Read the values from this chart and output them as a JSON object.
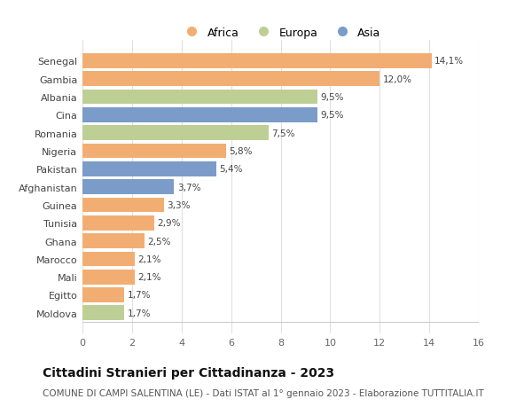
{
  "categories": [
    "Senegal",
    "Gambia",
    "Albania",
    "Cina",
    "Romania",
    "Nigeria",
    "Pakistan",
    "Afghanistan",
    "Guinea",
    "Tunisia",
    "Ghana",
    "Marocco",
    "Mali",
    "Egitto",
    "Moldova"
  ],
  "values": [
    14.1,
    12.0,
    9.5,
    9.5,
    7.5,
    5.8,
    5.4,
    3.7,
    3.3,
    2.9,
    2.5,
    2.1,
    2.1,
    1.7,
    1.7
  ],
  "labels": [
    "14,1%",
    "12,0%",
    "9,5%",
    "9,5%",
    "7,5%",
    "5,8%",
    "5,4%",
    "3,7%",
    "3,3%",
    "2,9%",
    "2,5%",
    "2,1%",
    "2,1%",
    "1,7%",
    "1,7%"
  ],
  "continents": [
    "Africa",
    "Africa",
    "Europa",
    "Asia",
    "Europa",
    "Africa",
    "Asia",
    "Asia",
    "Africa",
    "Africa",
    "Africa",
    "Africa",
    "Africa",
    "Africa",
    "Europa"
  ],
  "colors": {
    "Africa": "#F2AE72",
    "Europa": "#BECF96",
    "Asia": "#7B9CC8"
  },
  "legend_labels": [
    "Africa",
    "Europa",
    "Asia"
  ],
  "xlim": [
    0,
    16
  ],
  "xticks": [
    0,
    2,
    4,
    6,
    8,
    10,
    12,
    14,
    16
  ],
  "title": "Cittadini Stranieri per Cittadinanza - 2023",
  "subtitle": "COMUNE DI CAMPI SALENTINA (LE) - Dati ISTAT al 1° gennaio 2023 - Elaborazione TUTTITALIA.IT",
  "title_fontsize": 10,
  "subtitle_fontsize": 7.5,
  "background_color": "#ffffff",
  "grid_color": "#e0e0e0",
  "bar_height": 0.82
}
